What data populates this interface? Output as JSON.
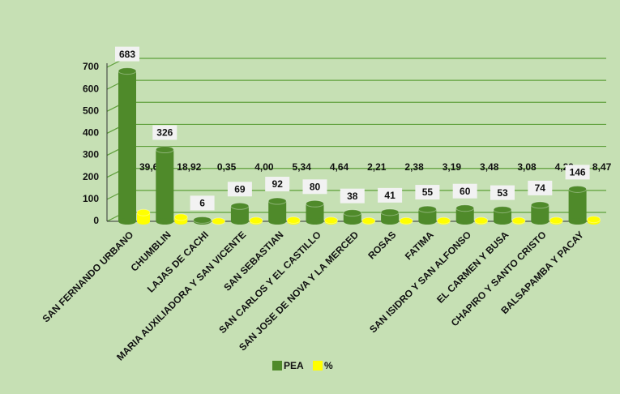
{
  "chart_data": {
    "type": "bar",
    "categories": [
      "SAN FERNANDO URBANO",
      "CHUMBLIN",
      "LAJAS DE CACHI",
      "MARIA AUXILIADORA Y SAN VICENTE",
      "SAN SEBASTIAN",
      "SAN CARLOS Y EL CASTILLO",
      "SAN JOSE DE NOVA Y LA MERCED",
      "ROSAS",
      "FATIMA",
      "SAN ISIDRO Y SAN ALFONSO",
      "EL CARMEN Y BUSA",
      "CHAPIRO Y SANTO CRISTO",
      "BALSAPAMBA Y PACAY"
    ],
    "series": [
      {
        "name": "PEA",
        "color": "#4f8a2a",
        "values": [
          683,
          326,
          6,
          69,
          92,
          80,
          38,
          41,
          55,
          60,
          53,
          74,
          146
        ]
      },
      {
        "name": "%",
        "color": "#ffff00",
        "values": [
          39.64,
          18.92,
          0.35,
          4.0,
          5.34,
          4.64,
          2.21,
          2.38,
          3.19,
          3.48,
          3.08,
          4.29,
          8.47
        ],
        "value_labels": [
          "39,64",
          "18,92",
          "0,35",
          "4,00",
          "5,34",
          "4,64",
          "2,21",
          "2,38",
          "3,19",
          "3,48",
          "3,08",
          "4,29",
          "8,47"
        ]
      }
    ],
    "ylim": [
      0,
      700
    ],
    "yticks": [
      0,
      100,
      200,
      300,
      400,
      500,
      600,
      700
    ],
    "grid": true,
    "legend": "bottom"
  }
}
